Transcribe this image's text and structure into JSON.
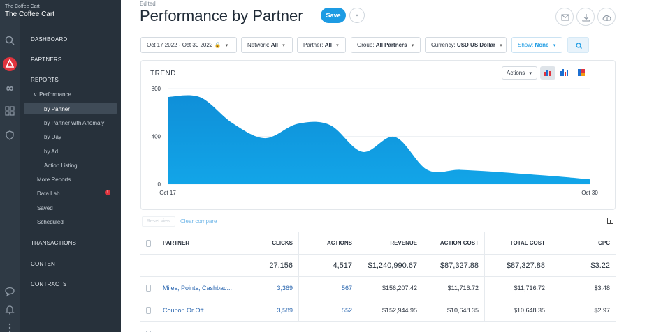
{
  "org": {
    "label": "The Coffee Cart",
    "name": "The Coffee Cart"
  },
  "rail_icons": [
    "search-icon",
    "brand-logo-icon",
    "infinity-icon",
    "grid-icon",
    "shield-icon",
    "chat-icon",
    "bell-icon",
    "more-icon"
  ],
  "sidebar": {
    "dashboard": "DASHBOARD",
    "partners": "PARTNERS",
    "reports": "REPORTS",
    "performance": "Performance",
    "by_partner": "by Partner",
    "by_partner_anomaly": "by Partner with Anomaly",
    "by_day": "by Day",
    "by_ad": "by Ad",
    "action_listing": "Action Listing",
    "more_reports": "More Reports",
    "data_lab": "Data Lab",
    "data_lab_badge": "!",
    "saved": "Saved",
    "scheduled": "Scheduled",
    "transactions": "TRANSACTIONS",
    "content": "CONTENT",
    "contracts": "CONTRACTS"
  },
  "header": {
    "edited": "Edited",
    "title": "Performance by Partner",
    "save_label": "Save",
    "cancel_label": "×"
  },
  "filters": {
    "date_range": "Oct 17 2022 - Oct 30 2022",
    "network_label": "Network:",
    "network_value": "All",
    "partner_label": "Partner:",
    "partner_value": "All",
    "group_label": "Group:",
    "group_value": "All Partners",
    "currency_label": "Currency:",
    "currency_value": "USD US Dollar",
    "show_label": "Show:",
    "show_value": "None"
  },
  "trend": {
    "label": "TREND",
    "actions_label": "Actions"
  },
  "chart_data": {
    "type": "area",
    "title": "TREND",
    "x_start_label": "Oct 17",
    "x_end_label": "Oct 30",
    "y_ticks": [
      0,
      400,
      800
    ],
    "ylim": [
      0,
      800
    ],
    "x": [
      "Oct 17",
      "Oct 18",
      "Oct 19",
      "Oct 20",
      "Oct 21",
      "Oct 22",
      "Oct 23",
      "Oct 24",
      "Oct 25",
      "Oct 26",
      "Oct 27",
      "Oct 28",
      "Oct 29",
      "Oct 30"
    ],
    "values": [
      730,
      728,
      510,
      385,
      505,
      495,
      270,
      395,
      120,
      120,
      105,
      85,
      65,
      40
    ],
    "color": "#12a5e8"
  },
  "controls": {
    "reset_view": "Reset view",
    "clear_compare": "Clear compare"
  },
  "table": {
    "headers": [
      "PARTNER",
      "CLICKS",
      "ACTIONS",
      "REVENUE",
      "ACTION COST",
      "TOTAL COST",
      "CPC"
    ],
    "totals": [
      "",
      "27,156",
      "4,517",
      "$1,240,990.67",
      "$87,327.88",
      "$87,327.88",
      "$3.22"
    ],
    "rows": [
      [
        "Miles, Points, Cashbac...",
        "3,369",
        "567",
        "$156,207.42",
        "$11,716.72",
        "$11,716.72",
        "$3.48"
      ],
      [
        "Coupon Or Off",
        "3,589",
        "552",
        "$152,944.95",
        "$10,648.35",
        "$10,648.35",
        "$2.97"
      ]
    ]
  }
}
